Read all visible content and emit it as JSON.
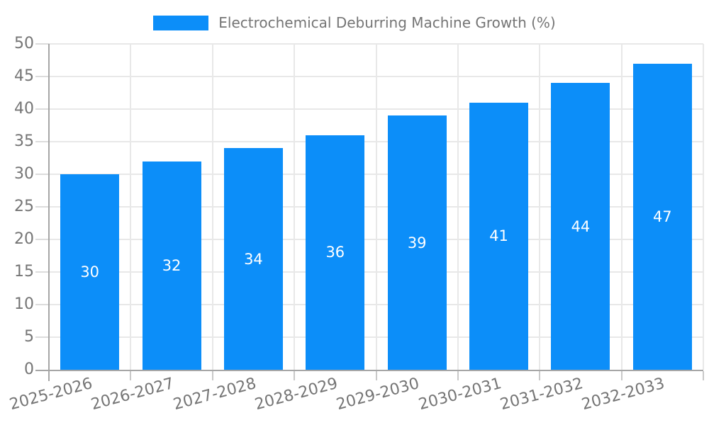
{
  "legend": {
    "label": "Electrochemical Deburring Machine Growth (%)"
  },
  "chart_data": {
    "type": "bar",
    "title": "Electrochemical Deburring Machine Growth (%)",
    "series_name": "Electrochemical Deburring Machine Growth (%)",
    "categories": [
      "2025-2026",
      "2026-2027",
      "2027-2028",
      "2028-2029",
      "2029-2030",
      "2030-2031",
      "2031-2032",
      "2032-2033"
    ],
    "values": [
      30,
      32,
      34,
      36,
      39,
      41,
      44,
      47
    ],
    "bar_labels": [
      "30",
      "32",
      "34",
      "36",
      "39",
      "41",
      "44",
      "47"
    ],
    "xlabel": "",
    "ylabel": "",
    "ylim": [
      0,
      50
    ],
    "yticks": [
      0,
      5,
      10,
      15,
      20,
      25,
      30,
      35,
      40,
      45,
      50
    ],
    "grid": true,
    "legend_position": "top-center",
    "colors": {
      "bar": "#0c8ef9",
      "grid": "#e8e8e8",
      "axis": "#a6a6a6",
      "tick_y": "#dcdcdc",
      "tick_x": "#c9c9c9",
      "text": "#757575",
      "bar_label": "#ffffff"
    }
  }
}
